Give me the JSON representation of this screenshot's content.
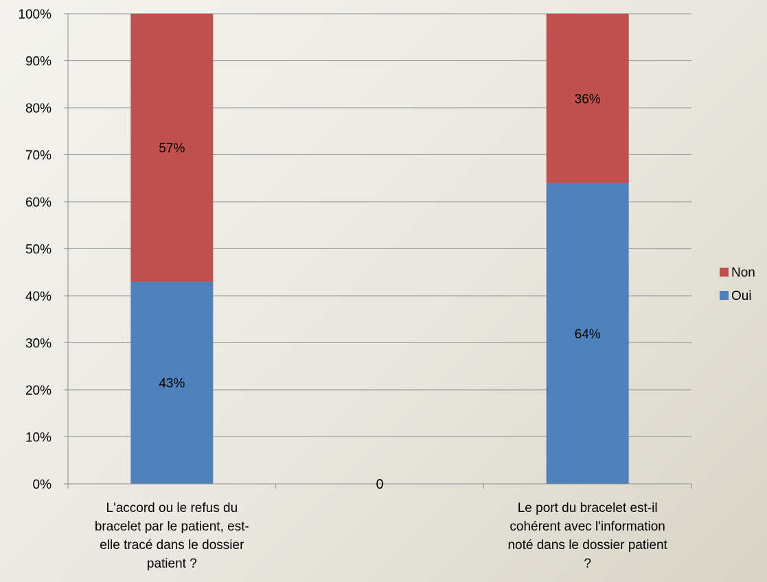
{
  "chart_data": {
    "type": "bar",
    "stacked": true,
    "categories": [
      "L'accord ou le refus du bracelet par le patient, est-elle tracé dans le dossier patient ?",
      "0",
      "Le port du bracelet est-il cohérent avec l'information noté dans le dossier patient ?"
    ],
    "category_lines": [
      [
        "L'accord ou le refus du",
        "bracelet par le patient, est-",
        "elle tracé dans le dossier",
        "patient ?"
      ],
      [
        "0"
      ],
      [
        "Le port du bracelet est-il",
        "cohérent avec l'information",
        "noté dans le dossier patient",
        "?"
      ]
    ],
    "series": [
      {
        "name": "Oui",
        "values": [
          43,
          null,
          64
        ],
        "labels": [
          "43%",
          "",
          "64%"
        ],
        "color": "#4f81bd"
      },
      {
        "name": "Non",
        "values": [
          57,
          null,
          36
        ],
        "labels": [
          "57%",
          "",
          "36%"
        ],
        "color": "#c0504d"
      }
    ],
    "yticks": [
      "0%",
      "10%",
      "20%",
      "30%",
      "40%",
      "50%",
      "60%",
      "70%",
      "80%",
      "90%",
      "100%"
    ],
    "ylim": [
      0,
      100
    ],
    "legend_order": [
      "Non",
      "Oui"
    ],
    "legend_position": "right",
    "grid": true,
    "title": "",
    "xlabel": "",
    "ylabel": ""
  }
}
